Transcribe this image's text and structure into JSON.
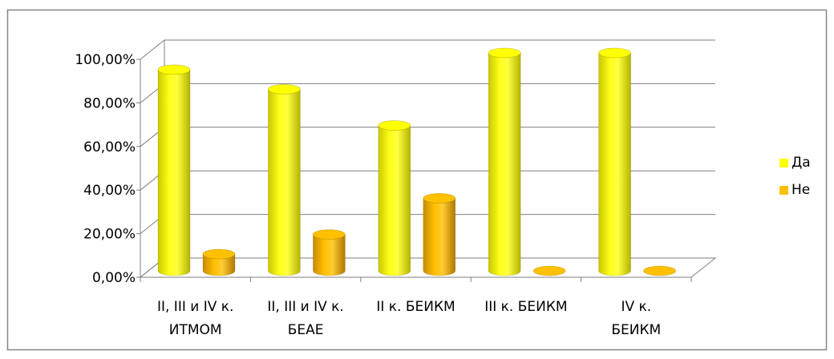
{
  "chart_data": {
    "type": "bar",
    "categories": [
      [
        "II, III и IV к.",
        "ИТМОМ"
      ],
      [
        "II, III и IV к.",
        "БЕАЕ"
      ],
      [
        "II к. БЕИКМ"
      ],
      [
        "III к. БЕИКМ"
      ],
      [
        "IV к.",
        "БЕИКМ"
      ]
    ],
    "series": [
      {
        "name": "Да",
        "values": [
          92.3,
          83.3,
          66.7,
          100,
          100
        ]
      },
      {
        "name": "Не",
        "values": [
          7.7,
          16.7,
          33.3,
          0,
          0
        ]
      }
    ],
    "ylim": [
      0,
      100
    ],
    "y_ticks": [
      "0,00%",
      "20,00%",
      "40,00%",
      "60,00%",
      "80,00%",
      "100,00%"
    ],
    "grid": true,
    "legend_position": "right",
    "colors": {
      "Да": "#ffff00",
      "Не": "#ffc000",
      "grid": "#7f7f7f",
      "frame": "#868686"
    }
  }
}
